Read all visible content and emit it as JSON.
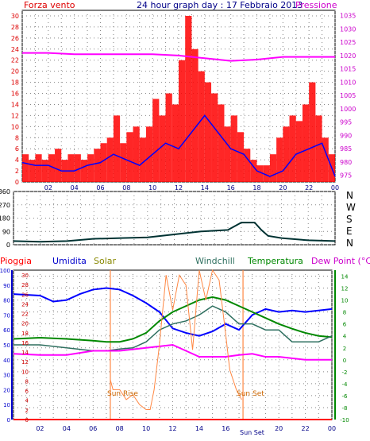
{
  "chart_data": [
    {
      "type": "line",
      "title": "24 hour graph day : 17 Febbraio 2013",
      "left_label": "Forza vento",
      "right_label": "Pressione",
      "colors": {
        "wind": "#ff0000",
        "gust": "#ff0000",
        "pressure": "#ff00ff",
        "avg": "#0000ff",
        "left_axis": "#dd0000",
        "right_axis": "#cc00cc",
        "time": "#000088"
      },
      "time_ticks": [
        "02",
        "04",
        "06",
        "08",
        "10",
        "12",
        "14",
        "16",
        "18",
        "20",
        "22",
        "00"
      ],
      "left_ylim": [
        0,
        31
      ],
      "left_ticks": [
        0,
        2,
        4,
        6,
        8,
        10,
        12,
        14,
        16,
        18,
        20,
        22,
        24,
        26,
        28,
        30
      ],
      "right_ylim": [
        972.5,
        1037
      ],
      "right_ticks": [
        975,
        980,
        985,
        990,
        995,
        1000,
        1005,
        1010,
        1015,
        1020,
        1025,
        1030,
        1035
      ],
      "series": [
        {
          "key": "gust",
          "style": "bars",
          "x": [
            0.5,
            1,
            1.5,
            2,
            2.5,
            3,
            3.5,
            4,
            4.5,
            5,
            5.5,
            6,
            6.5,
            7,
            7.5,
            8,
            8.5,
            9,
            9.5,
            10,
            10.5,
            11,
            11.5,
            12,
            12.5,
            13,
            13.5,
            14,
            14.5,
            15,
            15.5,
            16,
            16.5,
            17,
            17.5,
            18,
            18.5,
            19,
            19.5,
            20,
            20.5,
            21,
            21.5,
            22,
            22.5,
            23,
            23.5,
            24
          ],
          "values": [
            5,
            4,
            5,
            4,
            5,
            6,
            4,
            5,
            5,
            4,
            5,
            6,
            7,
            8,
            12,
            7,
            9,
            10,
            8,
            10,
            15,
            12,
            16,
            14,
            22,
            30,
            24,
            20,
            18,
            16,
            14,
            10,
            12,
            9,
            6,
            4,
            3,
            3,
            5,
            8,
            10,
            12,
            11,
            14,
            18,
            12,
            8,
            5
          ]
        },
        {
          "key": "wind",
          "style": "line",
          "x": [
            0,
            1,
            2,
            3,
            4,
            5,
            6,
            7,
            8,
            9,
            10,
            11,
            12,
            13,
            14,
            15,
            16,
            17,
            18,
            19,
            20,
            21,
            22,
            23,
            24
          ],
          "values": [
            3.5,
            3,
            3,
            2,
            2,
            3,
            3.5,
            5,
            4,
            3,
            5,
            7,
            6,
            9,
            12,
            9,
            6,
            5,
            2,
            1,
            2,
            5,
            6,
            7,
            1
          ]
        },
        {
          "key": "pressure",
          "style": "line",
          "axis": "right",
          "x": [
            0,
            2,
            4,
            6,
            8,
            10,
            12,
            14,
            16,
            18,
            20,
            22,
            24
          ],
          "values": [
            1021,
            1021,
            1020.5,
            1020.5,
            1020.5,
            1020.5,
            1020,
            1019,
            1018,
            1018.5,
            1019.5,
            1019.5,
            1019.5
          ]
        }
      ]
    },
    {
      "type": "line",
      "title": "",
      "right_labels": [
        "N",
        "W",
        "S",
        "E",
        "N"
      ],
      "ylim": [
        0,
        360
      ],
      "ticks": [
        0,
        90,
        180,
        270,
        360
      ],
      "color": "#003333",
      "series": [
        {
          "key": "direction",
          "x": [
            0,
            2,
            4,
            6,
            8,
            10,
            12,
            14,
            16,
            17,
            18,
            18.5,
            19,
            20,
            22,
            24
          ],
          "values": [
            25,
            20,
            25,
            40,
            45,
            50,
            70,
            90,
            100,
            150,
            150,
            100,
            60,
            45,
            30,
            25
          ]
        }
      ]
    },
    {
      "type": "line",
      "header_labels": {
        "rain": "Pioggia",
        "humidity": "Umidita",
        "solar": "Solar",
        "windchill": "Windchill",
        "temperature": "Temperatura",
        "dewpoint": "Dew Point (°C)"
      },
      "sun_rise_label": "Sun Rise",
      "sun_set_label": "Sun Set",
      "sun_set_tick": "Sun Set",
      "sun_rise_hour": 7.3,
      "sun_set_hour": 17.3,
      "rain_ticks": [
        0,
        2,
        4,
        6,
        8,
        10,
        12,
        14,
        16,
        18,
        20,
        22,
        24,
        26,
        28,
        30
      ],
      "humidity_ticks": [
        0,
        10,
        20,
        30,
        40,
        50,
        60,
        70,
        80,
        90,
        100
      ],
      "temp_ticks": [
        -10,
        -8,
        -6,
        -4,
        -2,
        0,
        2,
        4,
        6,
        8,
        10,
        12,
        14
      ],
      "colors": {
        "rain": "#ff0000",
        "humidity": "#0000ff",
        "solar": "#ff8844",
        "windchill": "#2e6f5f",
        "temperature": "#008800",
        "dewpoint": "#ff00ff"
      },
      "series": [
        {
          "key": "humidity",
          "x": [
            0,
            2,
            3,
            4,
            5,
            6,
            7,
            8,
            9,
            10,
            11,
            12,
            13,
            14,
            15,
            16,
            17,
            18,
            19,
            20,
            21,
            22,
            23,
            24
          ],
          "values": [
            84,
            83,
            79,
            80,
            84,
            87,
            88,
            87,
            83,
            78,
            72,
            61,
            58,
            56,
            59,
            64,
            60,
            70,
            74,
            72,
            73,
            72,
            73,
            74
          ]
        },
        {
          "key": "temperature",
          "x": [
            0,
            2,
            4,
            6,
            7,
            8,
            9,
            10,
            11,
            12,
            13,
            14,
            15,
            16,
            17,
            18,
            19,
            20,
            21,
            22,
            23,
            24
          ],
          "values": [
            3.5,
            3.7,
            3.5,
            3.2,
            3,
            3,
            3.5,
            4.5,
            6.5,
            8,
            9,
            10,
            10.5,
            10,
            9,
            8,
            7,
            6,
            5.2,
            4.5,
            4,
            3.8
          ]
        },
        {
          "key": "windchill",
          "x": [
            0,
            2,
            4,
            6,
            7,
            8,
            9,
            10,
            11,
            12,
            13,
            14,
            15,
            16,
            17,
            18,
            19,
            20,
            21,
            22,
            23,
            24
          ],
          "values": [
            2.5,
            2.5,
            2,
            1.5,
            1.5,
            1.8,
            2,
            3,
            5,
            6,
            6.5,
            7.5,
            9,
            8,
            6,
            6,
            5,
            5,
            3,
            3,
            3,
            4
          ]
        },
        {
          "key": "dewpoint",
          "x": [
            0,
            2,
            4,
            6,
            8,
            10,
            12,
            13,
            14,
            15,
            16,
            17,
            18,
            19,
            20,
            22,
            24
          ],
          "values": [
            1,
            0.8,
            0.8,
            1.5,
            1.5,
            2,
            2.5,
            1.5,
            0.5,
            0.5,
            0.5,
            0.8,
            1,
            0.5,
            0.5,
            0,
            0
          ]
        },
        {
          "key": "solar",
          "x": [
            7.3,
            7.5,
            8,
            8.5,
            9,
            9.5,
            10,
            10.3,
            10.6,
            11,
            11.5,
            12,
            12.5,
            13,
            13.5,
            14,
            14.5,
            15,
            15.5,
            16,
            16.3,
            16.8,
            17.2
          ],
          "values": [
            8,
            6,
            6,
            4,
            5,
            3,
            2,
            2,
            6,
            15,
            29,
            22,
            29,
            27,
            14,
            30,
            24,
            30,
            28,
            17,
            10,
            6,
            4
          ]
        },
        {
          "key": "rain",
          "x": [
            0,
            24
          ],
          "values": [
            0,
            0
          ]
        }
      ]
    }
  ]
}
